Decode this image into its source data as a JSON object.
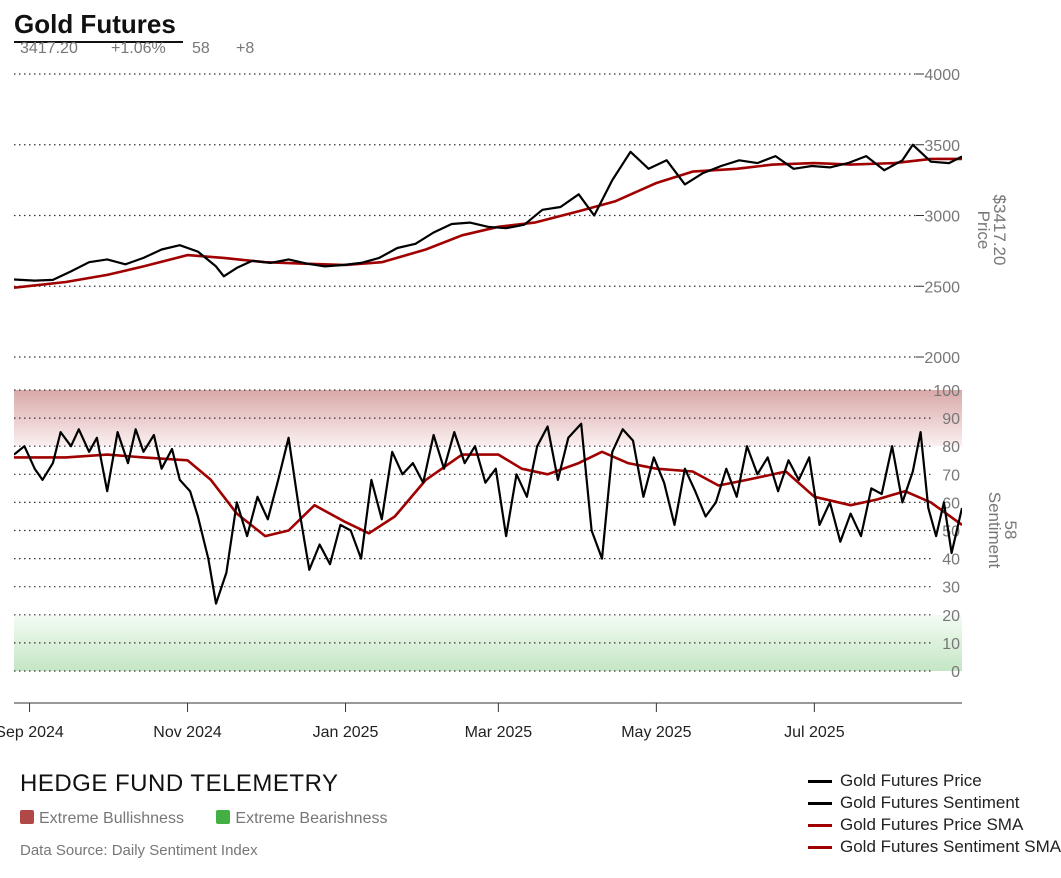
{
  "header": {
    "title": "Gold Futures",
    "price": "3417.20",
    "change": "+1.06%",
    "sentiment": "58",
    "sentiment_change": "+8"
  },
  "footer": {
    "brand": "HEDGE FUND TELEMETRY",
    "zone_bull": "Extreme Bullishness",
    "zone_bear": "Extreme Bearishness",
    "source": "Data Source: Daily Sentiment Index"
  },
  "colors": {
    "price_line": "#000000",
    "sma_line": "#a00000",
    "bull_zone": "#b04848",
    "bear_zone": "#44b044"
  },
  "chart_data": [
    {
      "type": "line",
      "panel": "price",
      "ylabel": "Price",
      "ylabel_value": "$3417.20",
      "ylim": [
        2000,
        4000
      ],
      "yticks": [
        2000,
        2500,
        3000,
        3500,
        4000
      ],
      "xlim": [
        "2024-08-26",
        "2025-08-27"
      ],
      "x_ticks": [
        {
          "date": "2024-09-01",
          "label": "Sep 2024"
        },
        {
          "date": "2024-11-01",
          "label": "Nov 2024"
        },
        {
          "date": "2025-01-01",
          "label": "Jan 2025"
        },
        {
          "date": "2025-03-01",
          "label": "Mar 2025"
        },
        {
          "date": "2025-05-01",
          "label": "May 2025"
        },
        {
          "date": "2025-07-01",
          "label": "Jul 2025"
        }
      ],
      "grid": true,
      "series": [
        {
          "name": "Gold Futures Price",
          "color": "#000000",
          "points": [
            [
              "2024-08-26",
              2548
            ],
            [
              "2024-09-03",
              2540
            ],
            [
              "2024-09-10",
              2545
            ],
            [
              "2024-09-17",
              2605
            ],
            [
              "2024-09-24",
              2670
            ],
            [
              "2024-10-01",
              2690
            ],
            [
              "2024-10-08",
              2655
            ],
            [
              "2024-10-15",
              2700
            ],
            [
              "2024-10-22",
              2760
            ],
            [
              "2024-10-29",
              2790
            ],
            [
              "2024-11-05",
              2745
            ],
            [
              "2024-11-12",
              2640
            ],
            [
              "2024-11-15",
              2570
            ],
            [
              "2024-11-20",
              2630
            ],
            [
              "2024-11-26",
              2680
            ],
            [
              "2024-12-03",
              2665
            ],
            [
              "2024-12-10",
              2690
            ],
            [
              "2024-12-17",
              2660
            ],
            [
              "2024-12-24",
              2640
            ],
            [
              "2024-12-31",
              2650
            ],
            [
              "2025-01-07",
              2665
            ],
            [
              "2025-01-14",
              2700
            ],
            [
              "2025-01-21",
              2770
            ],
            [
              "2025-01-28",
              2800
            ],
            [
              "2025-02-04",
              2880
            ],
            [
              "2025-02-11",
              2940
            ],
            [
              "2025-02-18",
              2950
            ],
            [
              "2025-02-25",
              2920
            ],
            [
              "2025-03-04",
              2910
            ],
            [
              "2025-03-11",
              2935
            ],
            [
              "2025-03-18",
              3040
            ],
            [
              "2025-03-25",
              3060
            ],
            [
              "2025-04-01",
              3150
            ],
            [
              "2025-04-07",
              3000
            ],
            [
              "2025-04-14",
              3250
            ],
            [
              "2025-04-21",
              3450
            ],
            [
              "2025-04-28",
              3330
            ],
            [
              "2025-05-05",
              3390
            ],
            [
              "2025-05-12",
              3220
            ],
            [
              "2025-05-19",
              3300
            ],
            [
              "2025-05-26",
              3350
            ],
            [
              "2025-06-02",
              3390
            ],
            [
              "2025-06-09",
              3370
            ],
            [
              "2025-06-16",
              3420
            ],
            [
              "2025-06-23",
              3330
            ],
            [
              "2025-06-30",
              3350
            ],
            [
              "2025-07-07",
              3340
            ],
            [
              "2025-07-14",
              3370
            ],
            [
              "2025-07-21",
              3420
            ],
            [
              "2025-07-28",
              3320
            ],
            [
              "2025-08-04",
              3390
            ],
            [
              "2025-08-08",
              3500
            ],
            [
              "2025-08-15",
              3380
            ],
            [
              "2025-08-22",
              3370
            ],
            [
              "2025-08-27",
              3417
            ]
          ]
        },
        {
          "name": "Gold Futures Price SMA",
          "color": "#a00000",
          "points": [
            [
              "2024-08-26",
              2490
            ],
            [
              "2024-09-15",
              2530
            ],
            [
              "2024-10-01",
              2580
            ],
            [
              "2024-10-15",
              2640
            ],
            [
              "2024-11-01",
              2720
            ],
            [
              "2024-11-15",
              2700
            ],
            [
              "2024-12-01",
              2670
            ],
            [
              "2024-12-15",
              2660
            ],
            [
              "2025-01-01",
              2650
            ],
            [
              "2025-01-15",
              2670
            ],
            [
              "2025-02-01",
              2760
            ],
            [
              "2025-02-15",
              2860
            ],
            [
              "2025-03-01",
              2920
            ],
            [
              "2025-03-15",
              2950
            ],
            [
              "2025-04-01",
              3030
            ],
            [
              "2025-04-15",
              3100
            ],
            [
              "2025-05-01",
              3230
            ],
            [
              "2025-05-15",
              3310
            ],
            [
              "2025-06-01",
              3330
            ],
            [
              "2025-06-15",
              3360
            ],
            [
              "2025-07-01",
              3370
            ],
            [
              "2025-07-15",
              3360
            ],
            [
              "2025-08-01",
              3370
            ],
            [
              "2025-08-15",
              3400
            ],
            [
              "2025-08-27",
              3400
            ]
          ]
        }
      ]
    },
    {
      "type": "line",
      "panel": "sentiment",
      "ylabel": "Sentiment",
      "ylabel_value": "58",
      "ylim": [
        0,
        100
      ],
      "yticks": [
        0,
        10,
        20,
        30,
        40,
        50,
        60,
        70,
        80,
        90,
        100
      ],
      "zones": [
        {
          "name": "Extreme Bullishness",
          "from": 80,
          "to": 100,
          "color": "#b04848"
        },
        {
          "name": "Extreme Bearishness",
          "from": 0,
          "to": 20,
          "color": "#44b044"
        }
      ],
      "grid": true,
      "series": [
        {
          "name": "Gold Futures Sentiment",
          "color": "#000000",
          "points": [
            [
              "2024-08-26",
              77
            ],
            [
              "2024-08-30",
              80
            ],
            [
              "2024-09-03",
              72
            ],
            [
              "2024-09-06",
              68
            ],
            [
              "2024-09-10",
              74
            ],
            [
              "2024-09-13",
              85
            ],
            [
              "2024-09-17",
              80
            ],
            [
              "2024-09-20",
              86
            ],
            [
              "2024-09-24",
              78
            ],
            [
              "2024-09-27",
              83
            ],
            [
              "2024-10-01",
              64
            ],
            [
              "2024-10-05",
              85
            ],
            [
              "2024-10-09",
              74
            ],
            [
              "2024-10-12",
              86
            ],
            [
              "2024-10-15",
              78
            ],
            [
              "2024-10-19",
              84
            ],
            [
              "2024-10-22",
              72
            ],
            [
              "2024-10-26",
              79
            ],
            [
              "2024-10-29",
              68
            ],
            [
              "2024-11-02",
              64
            ],
            [
              "2024-11-05",
              55
            ],
            [
              "2024-11-09",
              40
            ],
            [
              "2024-11-12",
              24
            ],
            [
              "2024-11-16",
              35
            ],
            [
              "2024-11-20",
              60
            ],
            [
              "2024-11-24",
              48
            ],
            [
              "2024-11-28",
              62
            ],
            [
              "2024-12-02",
              54
            ],
            [
              "2024-12-06",
              68
            ],
            [
              "2024-12-10",
              83
            ],
            [
              "2024-12-14",
              58
            ],
            [
              "2024-12-18",
              36
            ],
            [
              "2024-12-22",
              45
            ],
            [
              "2024-12-26",
              38
            ],
            [
              "2024-12-30",
              52
            ],
            [
              "2025-01-03",
              50
            ],
            [
              "2025-01-07",
              40
            ],
            [
              "2025-01-11",
              68
            ],
            [
              "2025-01-15",
              54
            ],
            [
              "2025-01-19",
              78
            ],
            [
              "2025-01-23",
              70
            ],
            [
              "2025-01-27",
              74
            ],
            [
              "2025-01-31",
              67
            ],
            [
              "2025-02-04",
              84
            ],
            [
              "2025-02-08",
              72
            ],
            [
              "2025-02-12",
              85
            ],
            [
              "2025-02-16",
              74
            ],
            [
              "2025-02-20",
              80
            ],
            [
              "2025-02-24",
              67
            ],
            [
              "2025-02-28",
              72
            ],
            [
              "2025-03-04",
              48
            ],
            [
              "2025-03-08",
              70
            ],
            [
              "2025-03-12",
              62
            ],
            [
              "2025-03-16",
              80
            ],
            [
              "2025-03-20",
              87
            ],
            [
              "2025-03-24",
              68
            ],
            [
              "2025-03-28",
              83
            ],
            [
              "2025-04-02",
              88
            ],
            [
              "2025-04-06",
              50
            ],
            [
              "2025-04-10",
              40
            ],
            [
              "2025-04-14",
              78
            ],
            [
              "2025-04-18",
              86
            ],
            [
              "2025-04-22",
              82
            ],
            [
              "2025-04-26",
              62
            ],
            [
              "2025-04-30",
              76
            ],
            [
              "2025-05-04",
              67
            ],
            [
              "2025-05-08",
              52
            ],
            [
              "2025-05-12",
              72
            ],
            [
              "2025-05-16",
              64
            ],
            [
              "2025-05-20",
              55
            ],
            [
              "2025-05-24",
              60
            ],
            [
              "2025-05-28",
              72
            ],
            [
              "2025-06-01",
              62
            ],
            [
              "2025-06-05",
              80
            ],
            [
              "2025-06-09",
              70
            ],
            [
              "2025-06-13",
              76
            ],
            [
              "2025-06-17",
              64
            ],
            [
              "2025-06-21",
              75
            ],
            [
              "2025-06-25",
              68
            ],
            [
              "2025-06-29",
              76
            ],
            [
              "2025-07-03",
              52
            ],
            [
              "2025-07-07",
              60
            ],
            [
              "2025-07-11",
              46
            ],
            [
              "2025-07-15",
              56
            ],
            [
              "2025-07-19",
              48
            ],
            [
              "2025-07-23",
              65
            ],
            [
              "2025-07-27",
              63
            ],
            [
              "2025-07-31",
              80
            ],
            [
              "2025-08-04",
              60
            ],
            [
              "2025-08-08",
              71
            ],
            [
              "2025-08-11",
              85
            ],
            [
              "2025-08-14",
              58
            ],
            [
              "2025-08-17",
              48
            ],
            [
              "2025-08-20",
              60
            ],
            [
              "2025-08-23",
              42
            ],
            [
              "2025-08-25",
              50
            ],
            [
              "2025-08-27",
              58
            ]
          ]
        },
        {
          "name": "Gold Futures Sentiment SMA",
          "color": "#a00000",
          "points": [
            [
              "2024-08-26",
              76
            ],
            [
              "2024-09-15",
              76
            ],
            [
              "2024-10-01",
              77
            ],
            [
              "2024-10-15",
              76
            ],
            [
              "2024-11-01",
              75
            ],
            [
              "2024-11-10",
              68
            ],
            [
              "2024-11-20",
              56
            ],
            [
              "2024-12-01",
              48
            ],
            [
              "2024-12-10",
              50
            ],
            [
              "2024-12-20",
              59
            ],
            [
              "2025-01-01",
              53
            ],
            [
              "2025-01-10",
              49
            ],
            [
              "2025-01-20",
              55
            ],
            [
              "2025-02-01",
              68
            ],
            [
              "2025-02-15",
              77
            ],
            [
              "2025-03-01",
              77
            ],
            [
              "2025-03-10",
              72
            ],
            [
              "2025-03-20",
              70
            ],
            [
              "2025-04-01",
              74
            ],
            [
              "2025-04-10",
              78
            ],
            [
              "2025-04-20",
              74
            ],
            [
              "2025-05-01",
              72
            ],
            [
              "2025-05-15",
              71
            ],
            [
              "2025-05-25",
              66
            ],
            [
              "2025-06-05",
              68
            ],
            [
              "2025-06-20",
              71
            ],
            [
              "2025-07-01",
              62
            ],
            [
              "2025-07-15",
              59
            ],
            [
              "2025-07-25",
              61
            ],
            [
              "2025-08-05",
              64
            ],
            [
              "2025-08-15",
              60
            ],
            [
              "2025-08-27",
              52
            ]
          ]
        }
      ]
    }
  ],
  "legend": {
    "items": [
      {
        "label": "Gold Futures Price",
        "color": "#000000"
      },
      {
        "label": "Gold Futures Sentiment",
        "color": "#000000"
      },
      {
        "label": "Gold Futures Price SMA",
        "color": "#a00000"
      },
      {
        "label": "Gold Futures Sentiment SMA",
        "color": "#a00000"
      }
    ]
  }
}
